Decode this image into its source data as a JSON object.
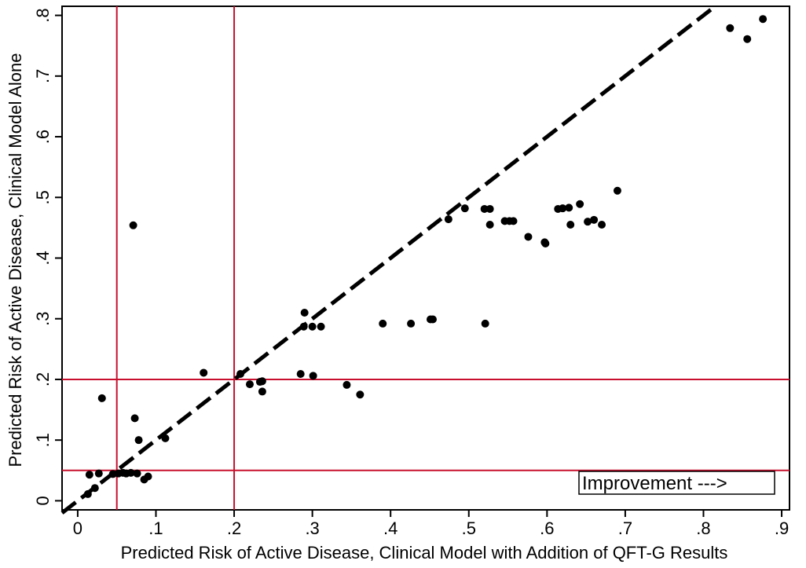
{
  "chart_data": {
    "type": "scatter",
    "xlabel": "Predicted Risk of Active Disease, Clinical Model with Addition of QFT-G Results",
    "ylabel": "Predicted Risk of Active Disease, Clinical Model Alone",
    "xlim": [
      -0.02,
      0.91
    ],
    "ylim": [
      -0.015,
      0.815
    ],
    "x_ticks": [
      0,
      0.1,
      0.2,
      0.3,
      0.4,
      0.5,
      0.6,
      0.7,
      0.8,
      0.9
    ],
    "x_tick_labels": [
      "0",
      ".1",
      ".2",
      ".3",
      ".4",
      ".5",
      ".6",
      ".7",
      ".8",
      ".9"
    ],
    "y_ticks": [
      0,
      0.1,
      0.2,
      0.3,
      0.4,
      0.5,
      0.6,
      0.7,
      0.8
    ],
    "y_tick_labels": [
      "0",
      ".1",
      ".2",
      ".3",
      ".4",
      ".5",
      ".6",
      ".7",
      ".8"
    ],
    "grid": false,
    "reference_lines": {
      "vertical": [
        0.05,
        0.2
      ],
      "horizontal": [
        0.05,
        0.2
      ],
      "color": "#c8102e"
    },
    "diagonal": {
      "from": [
        -0.02,
        -0.02
      ],
      "to": [
        0.81,
        0.81
      ],
      "style": "dashed",
      "color": "#000000"
    },
    "annotation": "Improvement --->",
    "points": [
      [
        0.013,
        0.011
      ],
      [
        0.015,
        0.043
      ],
      [
        0.022,
        0.021
      ],
      [
        0.027,
        0.045
      ],
      [
        0.031,
        0.169
      ],
      [
        0.045,
        0.044
      ],
      [
        0.052,
        0.045
      ],
      [
        0.058,
        0.046
      ],
      [
        0.062,
        0.045
      ],
      [
        0.068,
        0.046
      ],
      [
        0.071,
        0.454
      ],
      [
        0.073,
        0.136
      ],
      [
        0.076,
        0.045
      ],
      [
        0.078,
        0.1
      ],
      [
        0.085,
        0.035
      ],
      [
        0.09,
        0.04
      ],
      [
        0.112,
        0.103
      ],
      [
        0.161,
        0.211
      ],
      [
        0.208,
        0.209
      ],
      [
        0.22,
        0.192
      ],
      [
        0.233,
        0.196
      ],
      [
        0.236,
        0.18
      ],
      [
        0.236,
        0.197
      ],
      [
        0.285,
        0.209
      ],
      [
        0.289,
        0.287
      ],
      [
        0.29,
        0.31
      ],
      [
        0.3,
        0.287
      ],
      [
        0.301,
        0.206
      ],
      [
        0.311,
        0.287
      ],
      [
        0.344,
        0.191
      ],
      [
        0.361,
        0.175
      ],
      [
        0.39,
        0.292
      ],
      [
        0.426,
        0.292
      ],
      [
        0.451,
        0.299
      ],
      [
        0.454,
        0.299
      ],
      [
        0.474,
        0.464
      ],
      [
        0.495,
        0.482
      ],
      [
        0.52,
        0.481
      ],
      [
        0.521,
        0.292
      ],
      [
        0.527,
        0.481
      ],
      [
        0.527,
        0.455
      ],
      [
        0.546,
        0.461
      ],
      [
        0.552,
        0.461
      ],
      [
        0.557,
        0.461
      ],
      [
        0.576,
        0.435
      ],
      [
        0.597,
        0.426
      ],
      [
        0.598,
        0.424
      ],
      [
        0.614,
        0.481
      ],
      [
        0.62,
        0.482
      ],
      [
        0.628,
        0.483
      ],
      [
        0.63,
        0.455
      ],
      [
        0.642,
        0.489
      ],
      [
        0.652,
        0.46
      ],
      [
        0.66,
        0.463
      ],
      [
        0.67,
        0.455
      ],
      [
        0.69,
        0.511
      ],
      [
        0.834,
        0.779
      ],
      [
        0.856,
        0.761
      ],
      [
        0.876,
        0.794
      ]
    ]
  }
}
